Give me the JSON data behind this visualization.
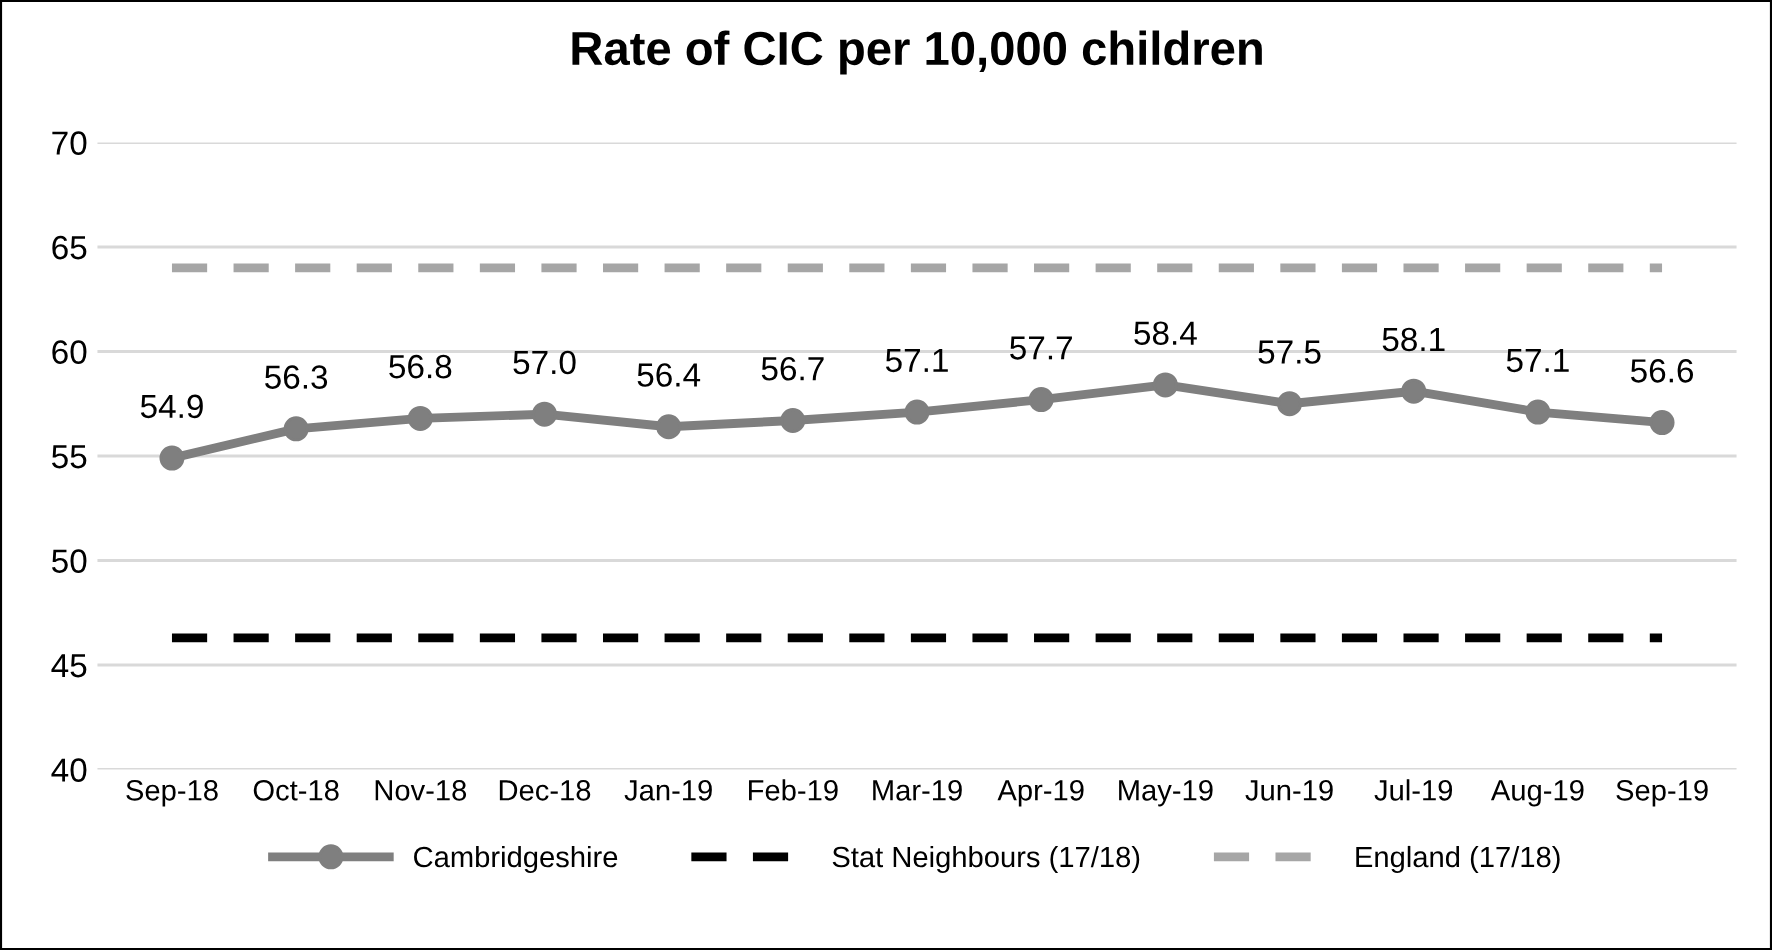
{
  "chart_data": {
    "type": "line",
    "title": "Rate of CIC per 10,000 children",
    "categories": [
      "Sep-18",
      "Oct-18",
      "Nov-18",
      "Dec-18",
      "Jan-19",
      "Feb-19",
      "Mar-19",
      "Apr-19",
      "May-19",
      "Jun-19",
      "Jul-19",
      "Aug-19",
      "Sep-19"
    ],
    "series": [
      {
        "name": "Cambridgeshire",
        "color": "#7f7f7f",
        "marker": "circle",
        "line_style": "solid",
        "values": [
          54.9,
          56.3,
          56.8,
          57.0,
          56.4,
          56.7,
          57.1,
          57.7,
          58.4,
          57.5,
          58.1,
          57.1,
          56.6
        ],
        "value_labels": [
          "54.9",
          "56.3",
          "56.8",
          "57.0",
          "56.4",
          "56.7",
          "57.1",
          "57.7",
          "58.4",
          "57.5",
          "58.1",
          "57.1",
          "56.6"
        ]
      },
      {
        "name": "Stat Neighbours (17/18)",
        "color": "#000000",
        "marker": "none",
        "line_style": "dashed",
        "values": [
          46.3,
          46.3,
          46.3,
          46.3,
          46.3,
          46.3,
          46.3,
          46.3,
          46.3,
          46.3,
          46.3,
          46.3,
          46.3
        ]
      },
      {
        "name": "England (17/18)",
        "color": "#a6a6a6",
        "marker": "none",
        "line_style": "dashed",
        "values": [
          64.0,
          64.0,
          64.0,
          64.0,
          64.0,
          64.0,
          64.0,
          64.0,
          64.0,
          64.0,
          64.0,
          64.0,
          64.0
        ]
      }
    ],
    "ylim": [
      40,
      70
    ],
    "yticks": [
      40,
      45,
      50,
      55,
      60,
      65,
      70
    ],
    "grid": "y",
    "legend": "bottom"
  }
}
